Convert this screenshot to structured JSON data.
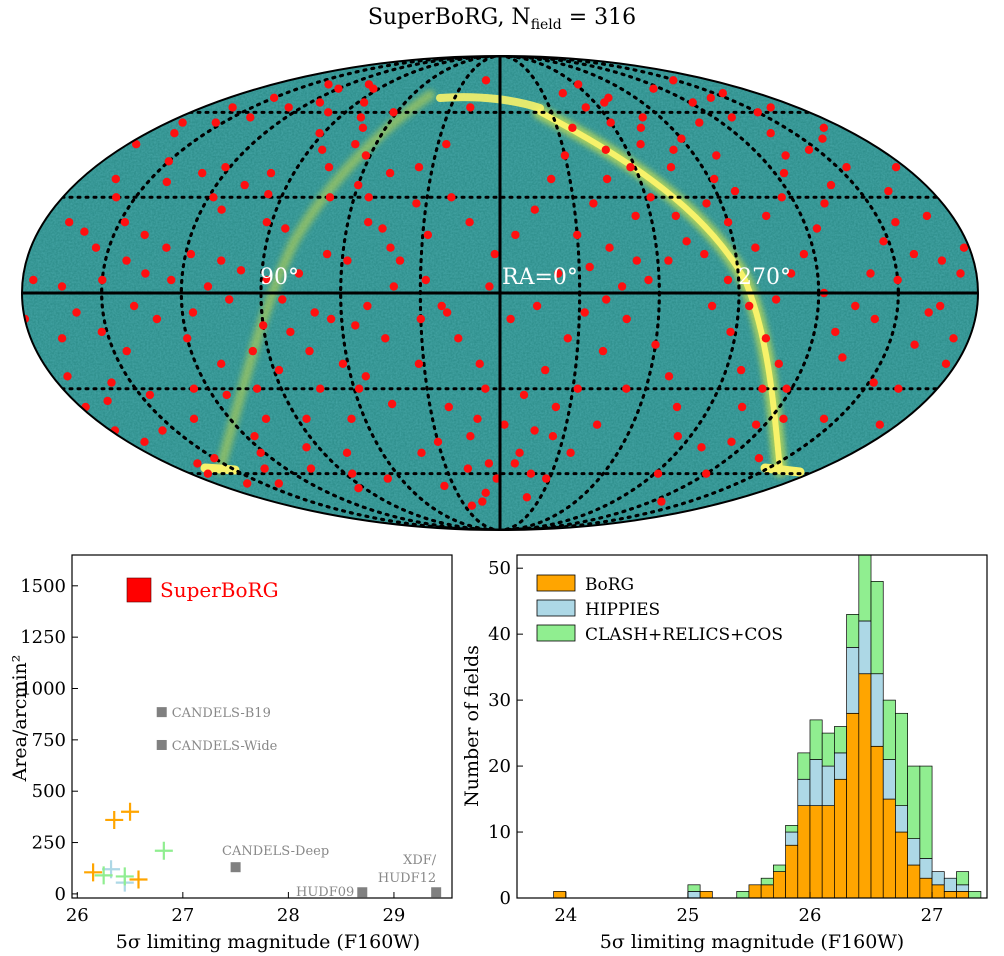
{
  "figure_title": "SuperBoRG, N",
  "figure_title_sub": "field",
  "figure_title_val": " = 316",
  "colors": {
    "sky_bg": "#2f8f8c",
    "sky_band": "#f7f26a",
    "field_points": "#ff1010",
    "borg": "#ffa500",
    "hippies": "#add8e6",
    "clash": "#90ee90",
    "survey_marker": "#808080",
    "superborg": "#ff0000"
  },
  "chart_data": [
    {
      "type": "scatter",
      "projection": "mollweide",
      "grid": true,
      "labels": {
        "ra90": "90°",
        "ra0": "RA=0°",
        "ra270": "270°"
      },
      "points_radec_deg": [
        [
          165,
          36
        ],
        [
          158,
          30
        ],
        [
          150,
          42
        ],
        [
          142,
          35
        ],
        [
          130,
          38
        ],
        [
          122,
          40
        ],
        [
          118,
          30
        ],
        [
          112,
          26
        ],
        [
          108,
          34
        ],
        [
          100,
          38
        ],
        [
          96,
          31
        ],
        [
          170,
          22
        ],
        [
          162,
          19
        ],
        [
          155,
          14
        ],
        [
          148,
          22
        ],
        [
          138,
          18
        ],
        [
          128,
          14
        ],
        [
          118,
          12
        ],
        [
          106,
          10
        ],
        [
          98,
          7
        ],
        [
          88,
          4
        ],
        [
          176,
          4
        ],
        [
          165,
          2
        ],
        [
          160,
          -6
        ],
        [
          152,
          -12
        ],
        [
          145,
          -18
        ],
        [
          168,
          -14
        ],
        [
          138,
          -4
        ],
        [
          130,
          -8
        ],
        [
          120,
          -14
        ],
        [
          110,
          -22
        ],
        [
          100,
          -30
        ],
        [
          88,
          -24
        ],
        [
          80,
          -12
        ],
        [
          70,
          -6
        ],
        [
          62,
          -22
        ],
        [
          55,
          -10
        ],
        [
          46,
          -35
        ],
        [
          40,
          -52
        ],
        [
          30,
          -48
        ],
        [
          36,
          -65
        ],
        [
          24,
          -74
        ],
        [
          14,
          -72
        ],
        [
          18,
          -58
        ],
        [
          10,
          -40
        ],
        [
          8,
          -22
        ],
        [
          16,
          -14
        ],
        [
          22,
          -4
        ],
        [
          30,
          -8
        ],
        [
          40,
          2
        ],
        [
          50,
          -4
        ],
        [
          58,
          10
        ],
        [
          66,
          12
        ],
        [
          76,
          6
        ],
        [
          84,
          20
        ],
        [
          92,
          22
        ],
        [
          70,
          30
        ],
        [
          60,
          34
        ],
        [
          48,
          38
        ],
        [
          36,
          40
        ],
        [
          26,
          48
        ],
        [
          18,
          62
        ],
        [
          12,
          74
        ],
        [
          6,
          -30
        ],
        [
          358,
          -42
        ],
        [
          350,
          -52
        ],
        [
          342,
          -60
        ],
        [
          335,
          -46
        ],
        [
          328,
          -30
        ],
        [
          320,
          -18
        ],
        [
          312,
          -8
        ],
        [
          304,
          4
        ],
        [
          296,
          10
        ],
        [
          288,
          16
        ],
        [
          280,
          -4
        ],
        [
          272,
          -12
        ],
        [
          264,
          -24
        ],
        [
          256,
          -36
        ],
        [
          248,
          -48
        ],
        [
          240,
          -60
        ],
        [
          232,
          -72
        ],
        [
          224,
          -54
        ],
        [
          216,
          -40
        ],
        [
          208,
          -28
        ],
        [
          200,
          -16
        ],
        [
          194,
          -4
        ],
        [
          186,
          6
        ],
        [
          182,
          14
        ],
        [
          190,
          24
        ],
        [
          198,
          32
        ],
        [
          206,
          40
        ],
        [
          214,
          46
        ],
        [
          222,
          52
        ],
        [
          230,
          58
        ],
        [
          238,
          64
        ],
        [
          246,
          70
        ],
        [
          252,
          56
        ],
        [
          260,
          44
        ],
        [
          268,
          36
        ],
        [
          276,
          28
        ],
        [
          284,
          40
        ],
        [
          292,
          48
        ],
        [
          300,
          56
        ],
        [
          308,
          62
        ],
        [
          316,
          68
        ],
        [
          322,
          54
        ],
        [
          330,
          44
        ],
        [
          338,
          36
        ],
        [
          346,
          26
        ],
        [
          354,
          18
        ],
        [
          2,
          12
        ],
        [
          4,
          2
        ],
        [
          346,
          -4
        ],
        [
          338,
          6
        ],
        [
          330,
          18
        ],
        [
          322,
          28
        ],
        [
          314,
          36
        ],
        [
          306,
          24
        ],
        [
          298,
          30
        ],
        [
          290,
          24
        ],
        [
          282,
          12
        ],
        [
          274,
          4
        ],
        [
          266,
          -4
        ],
        [
          258,
          -14
        ],
        [
          250,
          -22
        ],
        [
          242,
          -30
        ],
        [
          234,
          -40
        ],
        [
          226,
          -20
        ],
        [
          218,
          -8
        ],
        [
          210,
          4
        ],
        [
          202,
          12
        ],
        [
          196,
          -30
        ],
        [
          188,
          -42
        ],
        [
          184,
          -22
        ],
        [
          178,
          -36
        ],
        [
          172,
          -48
        ],
        [
          164,
          -56
        ],
        [
          156,
          -44
        ],
        [
          146,
          -32
        ],
        [
          136,
          -40
        ],
        [
          126,
          -30
        ],
        [
          116,
          -46
        ],
        [
          106,
          -58
        ],
        [
          96,
          -50
        ],
        [
          86,
          -40
        ],
        [
          78,
          -52
        ],
        [
          68,
          -62
        ],
        [
          176,
          48
        ],
        [
          166,
          52
        ],
        [
          154,
          56
        ],
        [
          140,
          58
        ],
        [
          128,
          62
        ],
        [
          114,
          64
        ],
        [
          100,
          60
        ],
        [
          92,
          52
        ],
        [
          84,
          46
        ],
        [
          76,
          40
        ],
        [
          72,
          54
        ],
        [
          62,
          60
        ],
        [
          200,
          50
        ],
        [
          210,
          60
        ],
        [
          220,
          34
        ],
        [
          228,
          28
        ],
        [
          236,
          20
        ],
        [
          244,
          12
        ],
        [
          250,
          6
        ],
        [
          256,
          -2
        ],
        [
          262,
          14
        ],
        [
          270,
          22
        ],
        [
          278,
          46
        ],
        [
          286,
          54
        ],
        [
          294,
          64
        ],
        [
          302,
          40
        ],
        [
          310,
          46
        ],
        [
          318,
          14
        ],
        [
          326,
          8
        ],
        [
          334,
          -14
        ],
        [
          342,
          -24
        ],
        [
          350,
          -32
        ],
        [
          356,
          -8
        ],
        [
          12,
          22
        ],
        [
          20,
          30
        ],
        [
          28,
          18
        ],
        [
          34,
          28
        ],
        [
          42,
          14
        ],
        [
          52,
          22
        ],
        [
          58,
          -30
        ],
        [
          66,
          -40
        ],
        [
          74,
          -30
        ],
        [
          82,
          -2
        ],
        [
          90,
          -10
        ],
        [
          96,
          -18
        ],
        [
          102,
          -2
        ],
        [
          110,
          2
        ],
        [
          116,
          -6
        ],
        [
          124,
          4
        ],
        [
          134,
          6
        ],
        [
          142,
          10
        ],
        [
          150,
          4
        ],
        [
          158,
          -28
        ],
        [
          166,
          -34
        ],
        [
          174,
          -26
        ],
        [
          180,
          -8
        ],
        [
          186,
          -14
        ],
        [
          192,
          10
        ],
        [
          198,
          -6
        ],
        [
          204,
          22
        ],
        [
          212,
          16
        ],
        [
          220,
          6
        ],
        [
          226,
          -4
        ],
        [
          232,
          -12
        ],
        [
          238,
          0
        ],
        [
          244,
          -42
        ],
        [
          252,
          -30
        ],
        [
          260,
          -50
        ],
        [
          268,
          -60
        ],
        [
          276,
          -46
        ],
        [
          284,
          -36
        ],
        [
          292,
          -26
        ],
        [
          300,
          -16
        ],
        [
          308,
          -30
        ],
        [
          316,
          -42
        ],
        [
          324,
          -52
        ],
        [
          332,
          -62
        ],
        [
          340,
          -70
        ],
        [
          6,
          -56
        ],
        [
          14,
          -46
        ],
        [
          22,
          -36
        ],
        [
          32,
          -22
        ],
        [
          44,
          -14
        ],
        [
          54,
          -26
        ],
        [
          64,
          -8
        ],
        [
          74,
          -18
        ],
        [
          86,
          -60
        ],
        [
          94,
          -66
        ],
        [
          104,
          -40
        ],
        [
          114,
          -32
        ],
        [
          122,
          -52
        ],
        [
          132,
          -58
        ],
        [
          140,
          -64
        ],
        [
          150,
          -54
        ],
        [
          160,
          -64
        ],
        [
          170,
          -60
        ],
        [
          178,
          -44
        ],
        [
          184,
          40
        ],
        [
          190,
          54
        ],
        [
          196,
          62
        ],
        [
          204,
          68
        ],
        [
          212,
          74
        ],
        [
          220,
          66
        ],
        [
          228,
          44
        ],
        [
          236,
          38
        ],
        [
          244,
          30
        ],
        [
          254,
          24
        ],
        [
          262,
          32
        ],
        [
          270,
          50
        ],
        [
          280,
          58
        ],
        [
          288,
          66
        ],
        [
          298,
          72
        ],
        [
          308,
          10
        ],
        [
          314,
          2
        ],
        [
          320,
          -2
        ],
        [
          328,
          -6
        ],
        [
          336,
          -36
        ],
        [
          344,
          -44
        ],
        [
          352,
          -56
        ],
        [
          2,
          -62
        ],
        [
          10,
          -68
        ],
        [
          20,
          -6
        ],
        [
          28,
          4
        ],
        [
          38,
          10
        ],
        [
          46,
          20
        ],
        [
          54,
          30
        ],
        [
          62,
          44
        ],
        [
          70,
          48
        ],
        [
          78,
          58
        ],
        [
          86,
          64
        ],
        [
          94,
          70
        ],
        [
          104,
          72
        ],
        [
          120,
          70
        ],
        [
          136,
          72
        ],
        [
          150,
          66
        ],
        [
          162,
          62
        ],
        [
          172,
          56
        ]
      ]
    },
    {
      "type": "scatter",
      "xlabel": "5σ limiting magnitude (F160W)",
      "ylabel": "Area/arcmin²",
      "xlim": [
        25.95,
        29.55
      ],
      "ylim": [
        -20,
        1650
      ],
      "xticks": [
        "26",
        "27",
        "28",
        "29"
      ],
      "yticks": [
        "0",
        "250",
        "500",
        "750",
        "1000",
        "1250",
        "1500"
      ],
      "legend": {
        "label": "SuperBoRG",
        "placement": "top-left"
      },
      "superborg": {
        "x": 26.42,
        "y": 1468
      },
      "surveys": [
        {
          "name": "CANDELS-B19",
          "x": 26.8,
          "y": 885
        },
        {
          "name": "CANDELS-Wide",
          "x": 26.8,
          "y": 725
        },
        {
          "name": "CANDELS-Deep",
          "x": 27.5,
          "y": 130
        },
        {
          "name": "HUDF09",
          "x": 28.7,
          "y": 8
        },
        {
          "name": "XDF/",
          "x": 29.4,
          "y": 8
        },
        {
          "name": "HUDF12",
          "x": 29.4,
          "y": 8
        }
      ],
      "crosses": [
        {
          "x": 26.35,
          "y": 360,
          "color": "borg"
        },
        {
          "x": 26.5,
          "y": 400,
          "color": "borg"
        },
        {
          "x": 26.15,
          "y": 105,
          "color": "borg"
        },
        {
          "x": 26.58,
          "y": 70,
          "color": "borg"
        },
        {
          "x": 26.32,
          "y": 120,
          "color": "hippies"
        },
        {
          "x": 26.45,
          "y": 55,
          "color": "hippies"
        },
        {
          "x": 26.25,
          "y": 90,
          "color": "clash"
        },
        {
          "x": 26.45,
          "y": 85,
          "color": "clash"
        },
        {
          "x": 26.82,
          "y": 210,
          "color": "clash"
        }
      ]
    },
    {
      "type": "bar",
      "stacked": true,
      "xlabel": "5σ limiting magnitude (F160W)",
      "ylabel": "Number of fields",
      "xlim": [
        23.6,
        27.45
      ],
      "ylim": [
        0,
        52
      ],
      "xticks": [
        "24",
        "25",
        "26",
        "27"
      ],
      "yticks": [
        "0",
        "10",
        "20",
        "30",
        "40",
        "50"
      ],
      "bin_width": 0.1,
      "bin_starts": [
        23.9,
        25.0,
        25.1,
        25.4,
        25.5,
        25.6,
        25.7,
        25.8,
        25.9,
        26.0,
        26.1,
        26.2,
        26.3,
        26.4,
        26.5,
        26.6,
        26.7,
        26.8,
        26.9,
        27.0,
        27.1,
        27.2,
        27.3
      ],
      "legend": {
        "placement": "top-left"
      },
      "series": [
        {
          "name": "BoRG",
          "color": "borg",
          "values": [
            1,
            0,
            1,
            0,
            2,
            2,
            4,
            8,
            14,
            14,
            14,
            18,
            28,
            34,
            23,
            15,
            10,
            5,
            3,
            2,
            1,
            1,
            0
          ]
        },
        {
          "name": "HIPPIES",
          "color": "hippies",
          "values": [
            0,
            1,
            0,
            0,
            0,
            0,
            0,
            2,
            4,
            7,
            6,
            4,
            10,
            8,
            11,
            6,
            4,
            4,
            3,
            2,
            2,
            1,
            0
          ]
        },
        {
          "name": "CLASH+RELICS+COS",
          "color": "clash",
          "values": [
            0,
            1,
            0,
            1,
            0,
            1,
            1,
            1,
            4,
            6,
            5,
            4,
            5,
            10,
            14,
            9,
            14,
            11,
            14,
            0,
            0,
            2,
            1
          ]
        }
      ]
    }
  ]
}
